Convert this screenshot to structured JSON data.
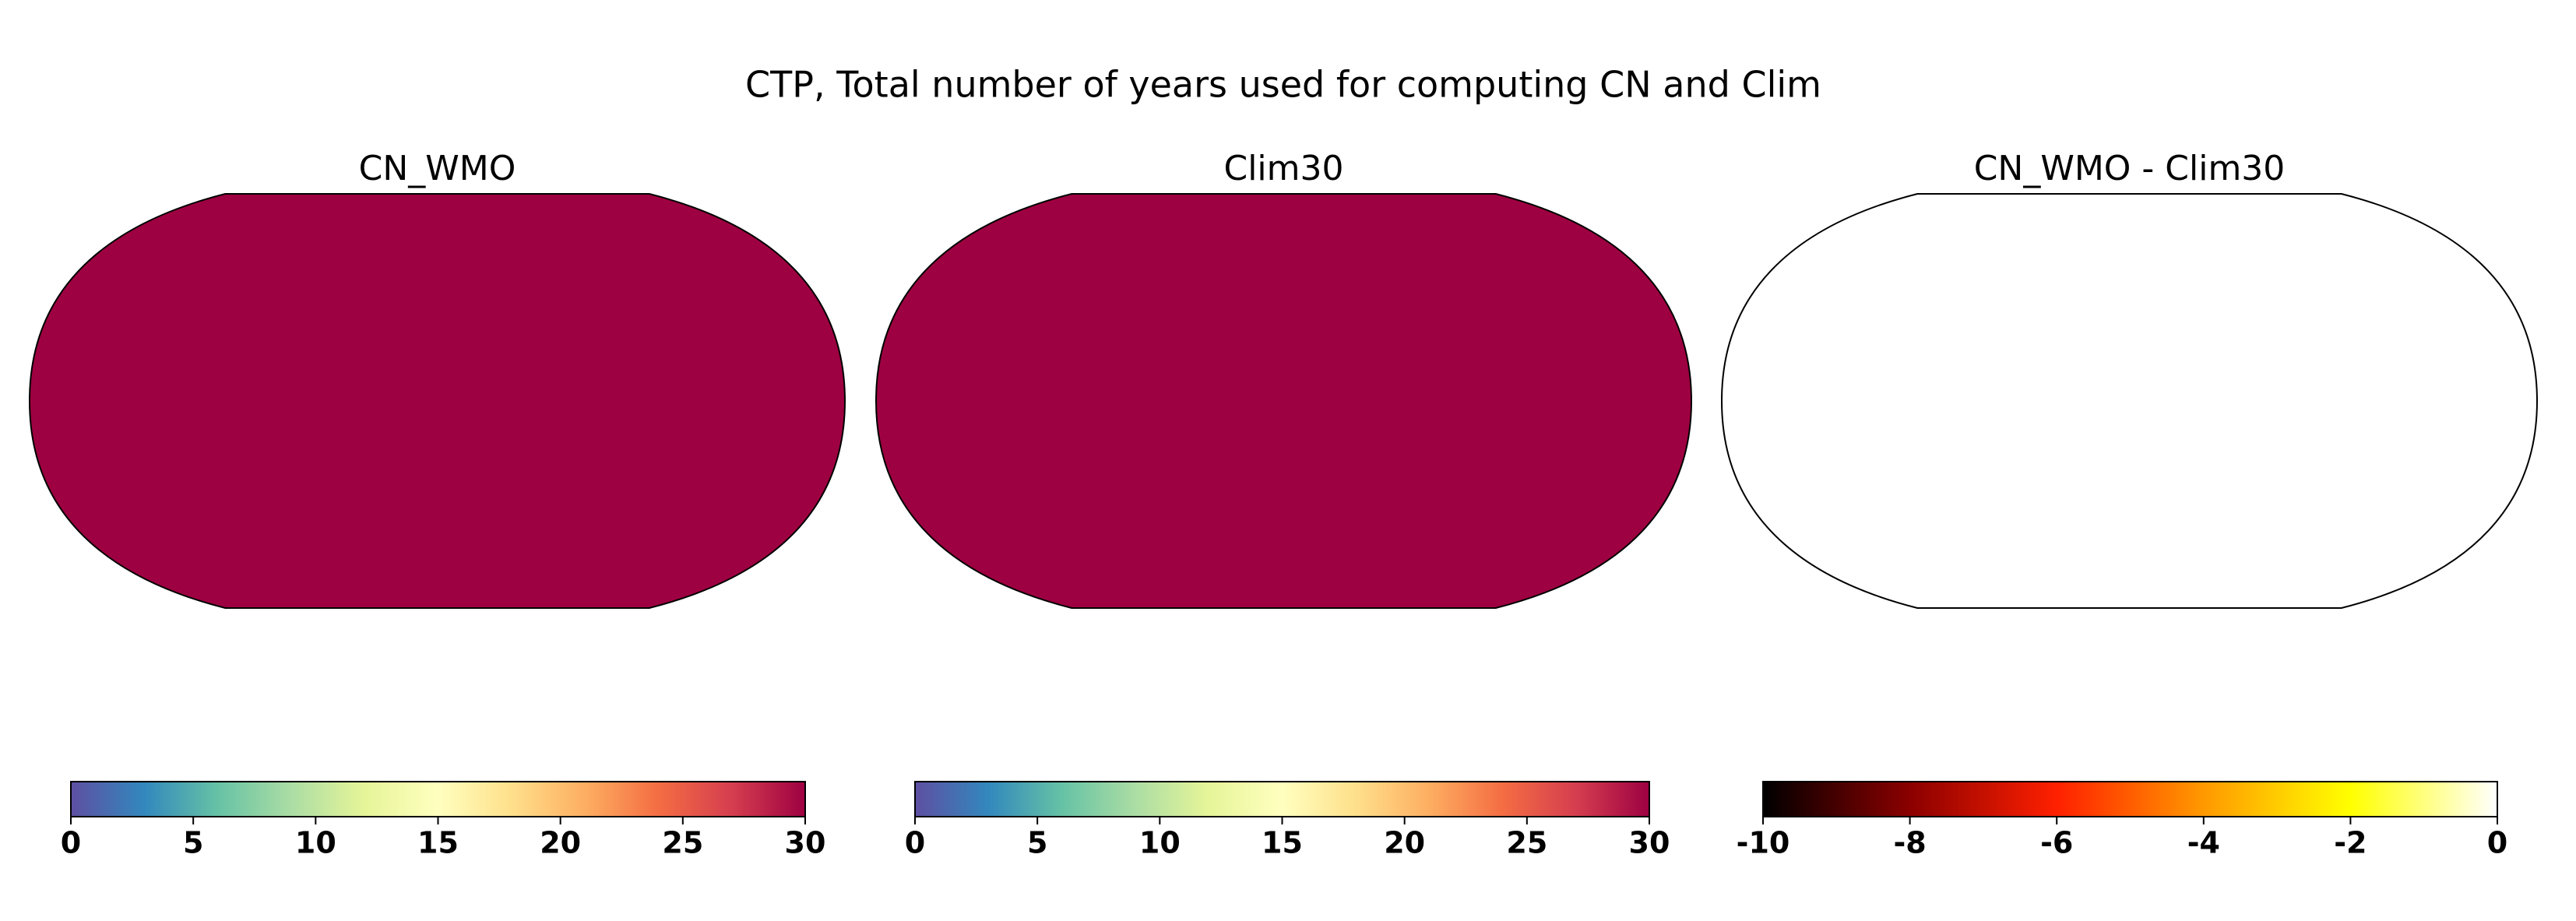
{
  "title": "CTP, Total number of years used for computing CN and Clim",
  "chart_data": [
    {
      "type": "map",
      "title": "CN_WMO",
      "map_fill": "#9e0142",
      "colors": [
        "#5e4fa2",
        "#3288bd",
        "#66c2a5",
        "#abdda4",
        "#e6f598",
        "#ffffbf",
        "#fee08b",
        "#fdae61",
        "#f46d43",
        "#d53e4f",
        "#9e0142"
      ],
      "clim": [
        0,
        30
      ],
      "cticks": [
        0,
        5,
        10,
        15,
        20,
        25,
        30
      ]
    },
    {
      "type": "map",
      "title": "Clim30",
      "map_fill": "#9e0142",
      "colors": [
        "#5e4fa2",
        "#3288bd",
        "#66c2a5",
        "#abdda4",
        "#e6f598",
        "#ffffbf",
        "#fee08b",
        "#fdae61",
        "#f46d43",
        "#d53e4f",
        "#9e0142"
      ],
      "clim": [
        0,
        30
      ],
      "cticks": [
        0,
        5,
        10,
        15,
        20,
        25,
        30
      ]
    },
    {
      "type": "map",
      "title": "CN_WMO - Clim30",
      "map_fill": "#ffffff",
      "colors": [
        "#000000",
        "#8b0000",
        "#ff2000",
        "#ff9900",
        "#ffff00",
        "#ffffff"
      ],
      "clim": [
        -10,
        0
      ],
      "cticks": [
        -10,
        -8,
        -6,
        -4,
        -2,
        0
      ]
    }
  ]
}
